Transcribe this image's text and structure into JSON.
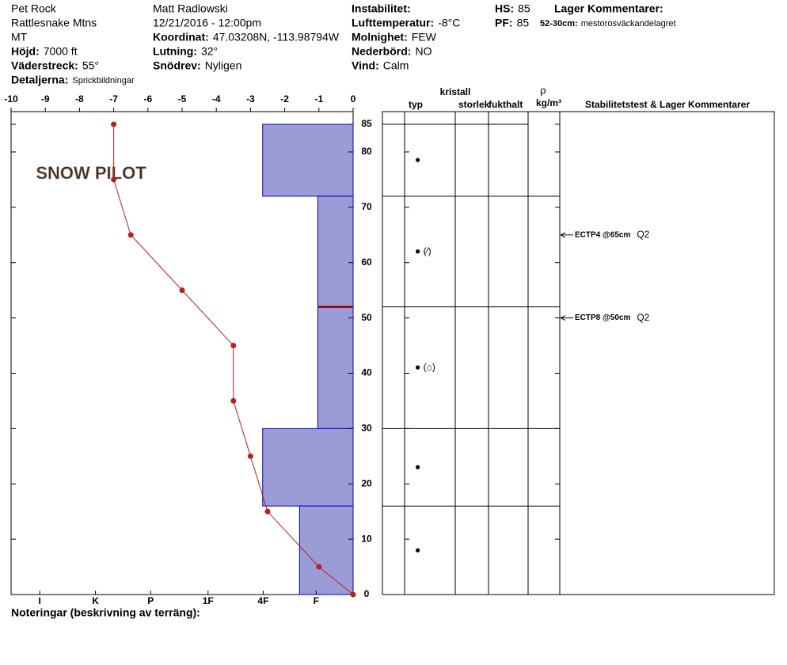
{
  "header": {
    "columns": [
      [
        {
          "value": "Pet Rock"
        },
        {
          "value": "Rattlesnake Mtns"
        },
        {
          "value": "MT"
        },
        {
          "label": "Höjd:",
          "value": "7000 ft"
        },
        {
          "label": "Väderstreck:",
          "value": "55°"
        },
        {
          "label": "Detaljerna:",
          "value": "Sprickbildningar",
          "small": true
        }
      ],
      [
        {
          "value": "Matt Radlowski"
        },
        {
          "value": "12/21/2016 - 12:00pm"
        },
        {
          "label": "Koordinat:",
          "value": "47.03208N, -113.98794W"
        },
        {
          "label": "Lutning:",
          "value": "32°"
        },
        {
          "label": "Snödrev:",
          "value": "Nyligen"
        }
      ],
      [
        {
          "label": "Instabilitet:"
        },
        {
          "label": "Lufttemperatur:",
          "value": "-8°C"
        },
        {
          "label": "Molnighet:",
          "value": "FEW"
        },
        {
          "label": "Nederbörd:",
          "value": "NO"
        },
        {
          "label": "Vind:",
          "value": "Calm"
        }
      ],
      [
        {
          "label": "HS:",
          "value": "85"
        },
        {
          "label": "PF:",
          "value": "85"
        }
      ]
    ],
    "layer_comments_title": "Lager Kommentarer:",
    "layer_comments": [
      {
        "label": "52-30cm:",
        "value": "mestorosväckandelagret"
      }
    ]
  },
  "logo": "SNOW PILOT",
  "chart_data": {
    "type": "snow-profile",
    "xlim": [
      -10,
      0
    ],
    "xticks": [
      -10,
      -9,
      -8,
      -7,
      -6,
      -5,
      -4,
      -3,
      -2,
      -1,
      0
    ],
    "ylim": [
      0,
      85
    ],
    "yticks": [
      0,
      10,
      20,
      30,
      40,
      50,
      60,
      70,
      80,
      85
    ],
    "hardness_lim": [
      0,
      6.2
    ],
    "hardness_ticks": [
      {
        "value": 5.68,
        "label": "I"
      },
      {
        "value": 4.67,
        "label": "K"
      },
      {
        "value": 3.67,
        "label": "P"
      },
      {
        "value": 2.63,
        "label": "1F"
      },
      {
        "value": 1.63,
        "label": "4F"
      },
      {
        "value": 0.67,
        "label": "F"
      }
    ],
    "layer_color": "#9b9bd6",
    "temp_color": "#b22222",
    "layers": [
      {
        "top": 85,
        "bottom": 72,
        "hardness": 1.64,
        "grain": "●"
      },
      {
        "top": 72,
        "bottom": 52,
        "hardness": 0.64,
        "grain": "● (⁄)"
      },
      {
        "top": 52,
        "bottom": 30,
        "hardness": 0.64,
        "grain": "● (⌂)"
      },
      {
        "top": 30,
        "bottom": 16,
        "hardness": 1.64,
        "grain": "●"
      },
      {
        "top": 16,
        "bottom": 0,
        "hardness": 0.97,
        "grain": "●"
      }
    ],
    "flagged_depth": 52,
    "temperature": {
      "depth": [
        85,
        75,
        65,
        55,
        45,
        35,
        25,
        15,
        5,
        0
      ],
      "values": [
        -7,
        -7,
        -6.5,
        -5,
        -3.5,
        -3.5,
        -3,
        -2.5,
        -1,
        0
      ]
    },
    "columns": {
      "crystal": "kristall",
      "type": "typ",
      "size": "storlek",
      "moisture": "fukthalt",
      "rho": "ρ",
      "density": "kg/m³",
      "comments": "Stabilitetstest & Lager Kommentarer"
    },
    "tests": [
      {
        "label": "ECTP4 @65cm",
        "quality": "Q2",
        "depth": 65
      },
      {
        "label": "ECTP8 @50cm",
        "quality": "Q2",
        "depth": 50
      }
    ],
    "notes": "Noteringar (beskrivning av terräng):"
  }
}
